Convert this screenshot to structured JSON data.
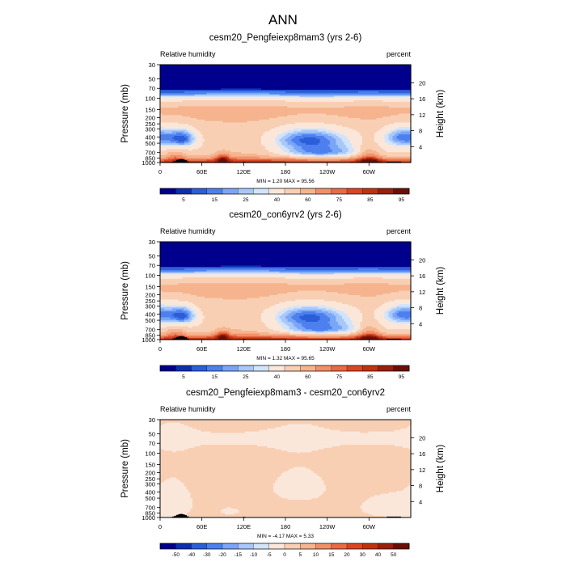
{
  "page_title": "ANN",
  "chart_data": [
    {
      "type": "heatmap",
      "title": "cesm20_Pengfeiexp8mam3 (yrs 2-6)",
      "left_label": "Relative humidity",
      "right_label": "percent",
      "ylabel": "Pressure (mb)",
      "ylabel_right": "Height (km)",
      "x_ticks": [
        "0",
        "60E",
        "120E",
        "180",
        "120W",
        "60W"
      ],
      "x_tick_values": [
        0,
        60,
        120,
        180,
        240,
        300
      ],
      "xlim": [
        0,
        360
      ],
      "y_ticks": [
        "1000",
        "850",
        "700",
        "500",
        "400",
        "300",
        "250",
        "200",
        "150",
        "100",
        "70",
        "50",
        "30"
      ],
      "y_tick_values": [
        1000,
        850,
        700,
        500,
        400,
        300,
        250,
        200,
        150,
        100,
        70,
        50,
        30
      ],
      "ylim": [
        1000,
        30
      ],
      "y_right_ticks": [
        "4",
        "8",
        "12",
        "16",
        "20"
      ],
      "y_right_tick_values": [
        4,
        8,
        12,
        16,
        20
      ],
      "stats": "MIN =   1.20  MAX =  95.56",
      "min": 1.2,
      "max": 95.56,
      "colorbar_labels": [
        "5",
        "15",
        "25",
        "40",
        "60",
        "75",
        "85",
        "95"
      ],
      "colorbar_levels": [
        3,
        5,
        10,
        15,
        20,
        25,
        30,
        40,
        50,
        60,
        70,
        75,
        80,
        85,
        90,
        95
      ],
      "palette": "absolute",
      "field": "base"
    },
    {
      "type": "heatmap",
      "title": "cesm20_con6yrv2 (yrs 2-6)",
      "left_label": "Relative humidity",
      "right_label": "percent",
      "ylabel": "Pressure (mb)",
      "ylabel_right": "Height (km)",
      "x_ticks": [
        "0",
        "60E",
        "120E",
        "180",
        "120W",
        "60W"
      ],
      "x_tick_values": [
        0,
        60,
        120,
        180,
        240,
        300
      ],
      "xlim": [
        0,
        360
      ],
      "y_ticks": [
        "1000",
        "850",
        "700",
        "500",
        "400",
        "300",
        "250",
        "200",
        "150",
        "100",
        "70",
        "50",
        "30"
      ],
      "y_tick_values": [
        1000,
        850,
        700,
        500,
        400,
        300,
        250,
        200,
        150,
        100,
        70,
        50,
        30
      ],
      "ylim": [
        1000,
        30
      ],
      "y_right_ticks": [
        "4",
        "8",
        "12",
        "16",
        "20"
      ],
      "y_right_tick_values": [
        4,
        8,
        12,
        16,
        20
      ],
      "stats": "MIN =   1.32  MAX =  95.65",
      "min": 1.32,
      "max": 95.65,
      "colorbar_labels": [
        "5",
        "15",
        "25",
        "40",
        "60",
        "75",
        "85",
        "95"
      ],
      "colorbar_levels": [
        3,
        5,
        10,
        15,
        20,
        25,
        30,
        40,
        50,
        60,
        70,
        75,
        80,
        85,
        90,
        95
      ],
      "palette": "absolute",
      "field": "base"
    },
    {
      "type": "heatmap",
      "title": "cesm20_Pengfeiexp8mam3 - cesm20_con6yrv2",
      "left_label": "Relative humidity",
      "right_label": "percent",
      "ylabel": "Pressure (mb)",
      "ylabel_right": "Height (km)",
      "x_ticks": [
        "0",
        "60E",
        "120E",
        "180",
        "120W",
        "60W"
      ],
      "x_tick_values": [
        0,
        60,
        120,
        180,
        240,
        300
      ],
      "xlim": [
        0,
        360
      ],
      "y_ticks": [
        "1000",
        "850",
        "700",
        "500",
        "400",
        "300",
        "250",
        "200",
        "150",
        "100",
        "70",
        "50",
        "30"
      ],
      "y_tick_values": [
        1000,
        850,
        700,
        500,
        400,
        300,
        250,
        200,
        150,
        100,
        70,
        50,
        30
      ],
      "ylim": [
        1000,
        30
      ],
      "y_right_ticks": [
        "4",
        "8",
        "12",
        "16",
        "20"
      ],
      "y_right_tick_values": [
        4,
        8,
        12,
        16,
        20
      ],
      "stats": "MIN =  -4.17  MAX =   5.33",
      "min": -4.17,
      "max": 5.33,
      "colorbar_labels": [
        "-50",
        "-40",
        "-30",
        "-20",
        "-15",
        "-10",
        "-5",
        "0",
        "5",
        "10",
        "15",
        "20",
        "30",
        "40",
        "50"
      ],
      "colorbar_levels": [
        -50,
        -40,
        -30,
        -20,
        -15,
        -10,
        -5,
        0,
        5,
        10,
        15,
        20,
        30,
        40,
        50
      ],
      "palette": "difference",
      "field": "diff"
    }
  ],
  "colors": {
    "absolute": [
      "#00008c",
      "#0c2fb0",
      "#2b5ed8",
      "#4d80ee",
      "#7aa6f8",
      "#a8c8fa",
      "#d2e4fb",
      "#fbe7da",
      "#f9cfb4",
      "#f6b48e",
      "#f19068",
      "#e96a45",
      "#dc4523",
      "#c0330f",
      "#99200a",
      "#6b0f06"
    ],
    "difference": [
      "#00008c",
      "#0c2fb0",
      "#2b5ed8",
      "#4d80ee",
      "#7aa6f8",
      "#a8c8fa",
      "#d2e4fb",
      "#fbe7da",
      "#f9cfb4",
      "#f6b48e",
      "#f19068",
      "#e96a45",
      "#dc4523",
      "#c0330f",
      "#99200a",
      "#6b0f06"
    ],
    "topography": "#000000"
  }
}
